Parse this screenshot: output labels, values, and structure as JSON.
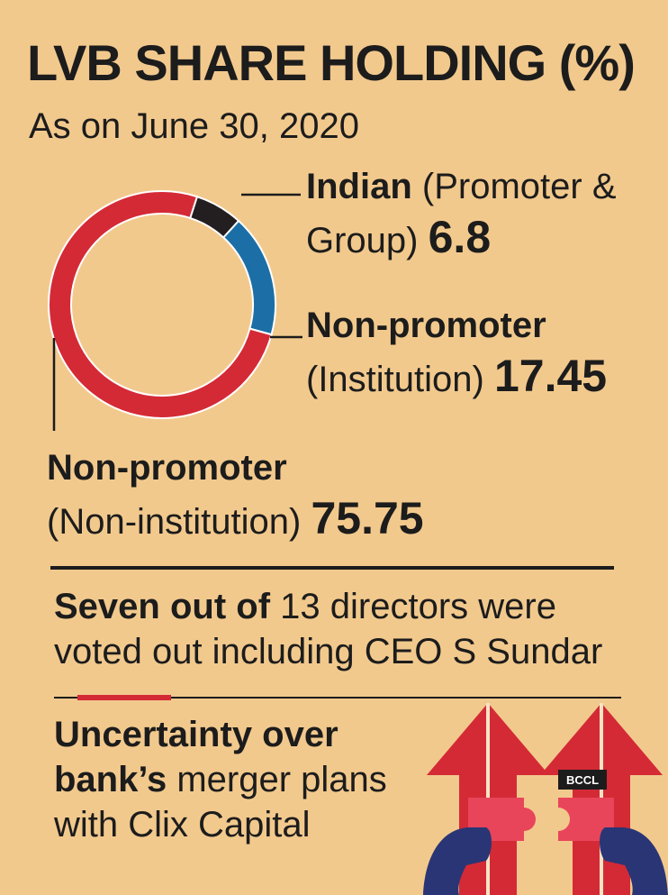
{
  "title": "LVB SHARE HOLDING (%)",
  "subtitle": "As on June 30, 2020",
  "chart_data": {
    "type": "pie",
    "slices": [
      {
        "label_bold": "Indian",
        "label_rest": "(Promoter &",
        "label_line2": "Group)",
        "value": 6.8,
        "display_value": "6.8",
        "color": "#231f20"
      },
      {
        "label_bold": "Non-promoter",
        "label_rest": "",
        "label_line2": "(Institution)",
        "value": 17.45,
        "display_value": "17.45",
        "color": "#1b6fa6"
      },
      {
        "label_bold": "Non-promoter",
        "label_rest": "",
        "label_line2": "(Non-institution)",
        "value": 75.75,
        "display_value": "75.75",
        "color": "#d42a36"
      }
    ]
  },
  "notes": {
    "line1_bold": "Seven out of",
    "line1_rest": "13 directors were",
    "line2": "voted out including CEO S Sundar",
    "line3_bold": "Uncertainty over",
    "line4_bold": "bank’s",
    "line4_rest": "merger plans",
    "line5": "with Clix Capital"
  },
  "credit": "BCCL",
  "colors": {
    "background": "#f2c98d",
    "accent": "#d42a36",
    "navy": "#2a3575"
  }
}
